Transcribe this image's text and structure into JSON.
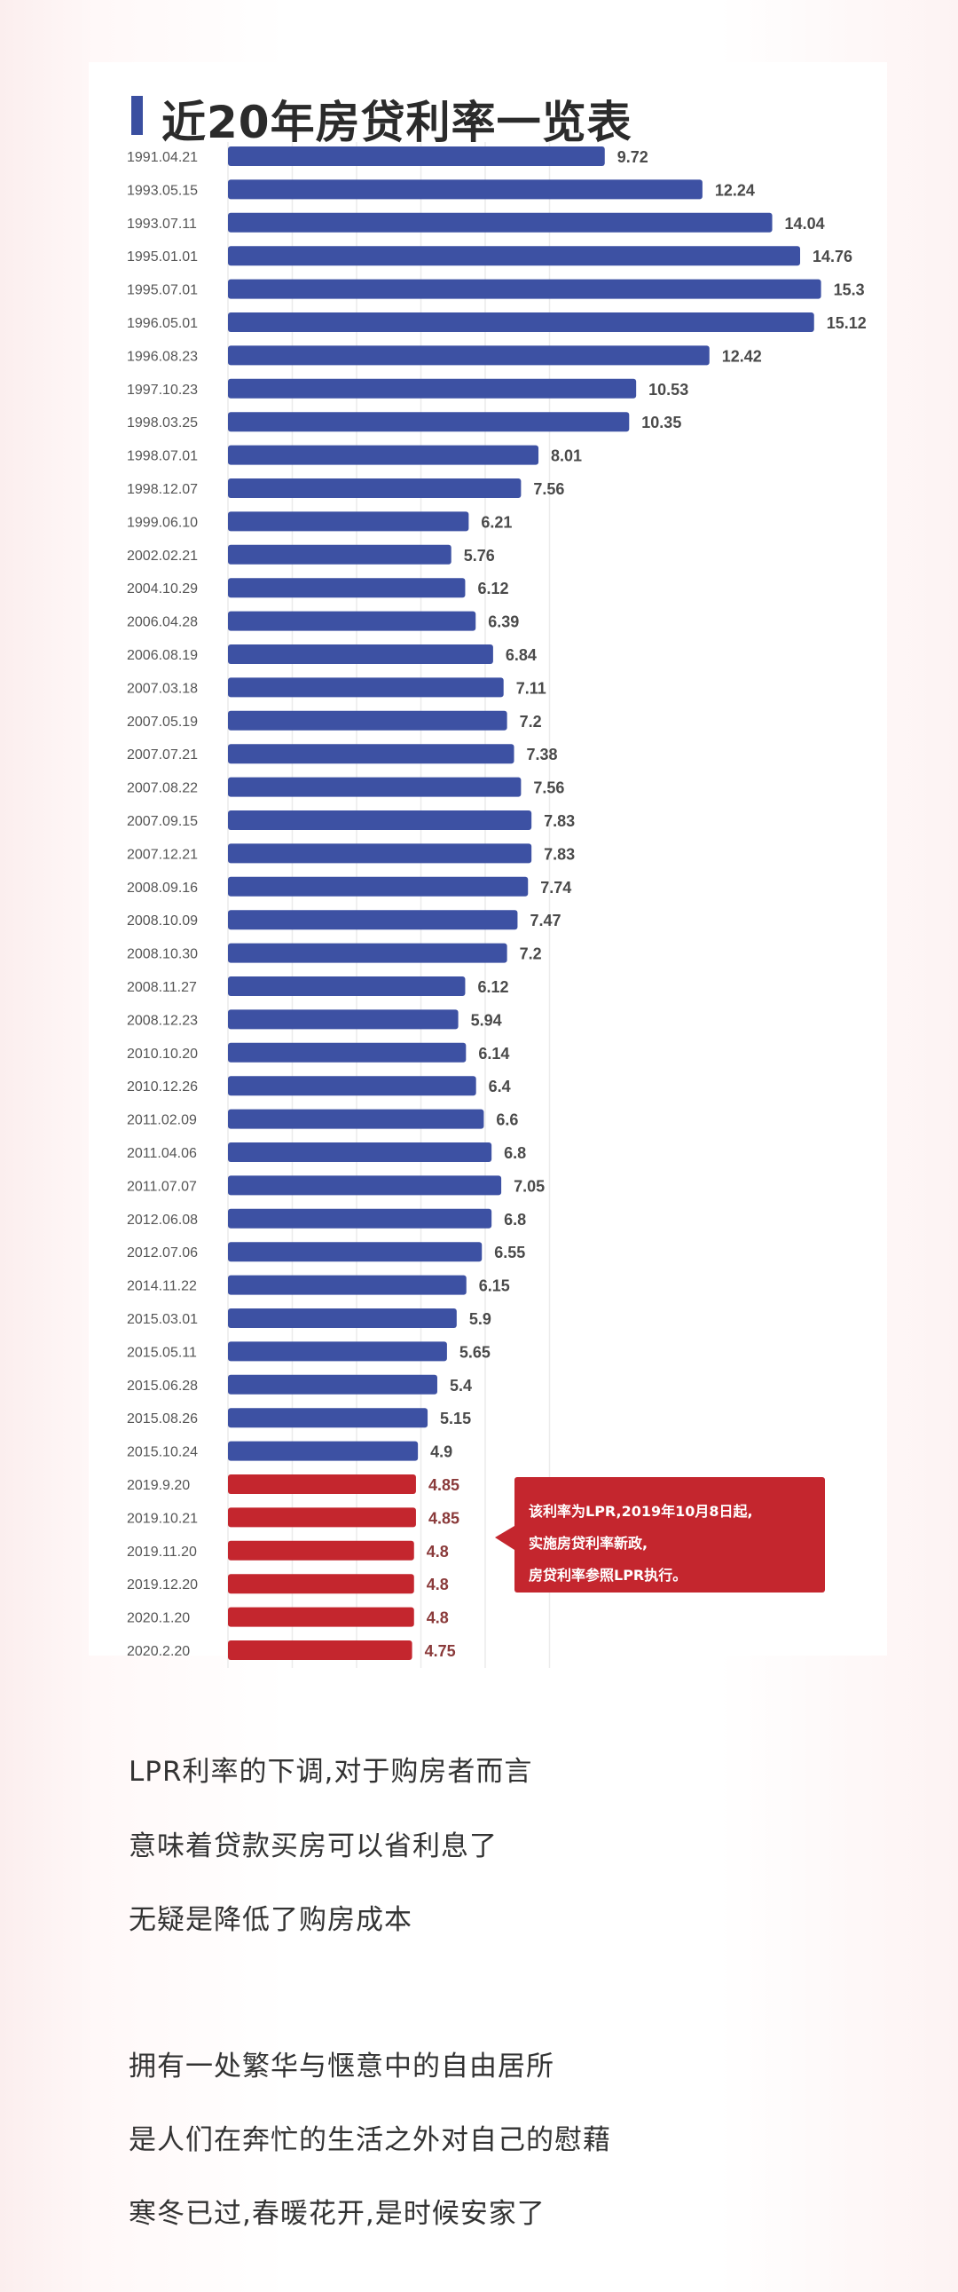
{
  "chart_data": {
    "type": "bar",
    "orientation": "horizontal",
    "title": "近20年房贷利率一览表",
    "categories": [
      "1991.04.21",
      "1993.05.15",
      "1993.07.11",
      "1995.01.01",
      "1995.07.01",
      "1996.05.01",
      "1996.08.23",
      "1997.10.23",
      "1998.03.25",
      "1998.07.01",
      "1998.12.07",
      "1999.06.10",
      "2002.02.21",
      "2004.10.29",
      "2006.04.28",
      "2006.08.19",
      "2007.03.18",
      "2007.05.19",
      "2007.07.21",
      "2007.08.22",
      "2007.09.15",
      "2007.12.21",
      "2008.09.16",
      "2008.10.09",
      "2008.10.30",
      "2008.11.27",
      "2008.12.23",
      "2010.10.20",
      "2010.12.26",
      "2011.02.09",
      "2011.04.06",
      "2011.07.07",
      "2012.06.08",
      "2012.07.06",
      "2014.11.22",
      "2015.03.01",
      "2015.05.11",
      "2015.06.28",
      "2015.08.26",
      "2015.10.24",
      "2019.9.20",
      "2019.10.21",
      "2019.11.20",
      "2019.12.20",
      "2020.1.20",
      "2020.2.20"
    ],
    "values": [
      9.72,
      12.24,
      14.04,
      14.76,
      15.3,
      15.12,
      12.42,
      10.53,
      10.35,
      8.01,
      7.56,
      6.21,
      5.76,
      6.12,
      6.39,
      6.84,
      7.11,
      7.2,
      7.38,
      7.56,
      7.83,
      7.83,
      7.74,
      7.47,
      7.2,
      6.12,
      5.94,
      6.14,
      6.4,
      6.6,
      6.8,
      7.05,
      6.8,
      6.55,
      6.15,
      5.9,
      5.65,
      5.4,
      5.15,
      4.9,
      4.85,
      4.85,
      4.8,
      4.8,
      4.8,
      4.75
    ],
    "data_labels": [
      "9.72",
      "12.24",
      "14.04",
      "14.76",
      "15.3",
      "15.12",
      "12.42",
      "10.53",
      "10.35",
      "8.01",
      "7.56",
      "6.21",
      "5.76",
      "6.12",
      "6.39",
      "6.84",
      "7.11",
      "7.2",
      "7.38",
      "7.56",
      "7.83",
      "7.83",
      "7.74",
      "7.47",
      "7.2",
      "6.12",
      "5.94",
      "6.14",
      "6.4",
      "6.6",
      "6.8",
      "7.05",
      "6.8",
      "6.55",
      "6.15",
      "5.9",
      "5.65",
      "5.4",
      "5.15",
      "4.9",
      "4.85",
      "4.85",
      "4.8",
      "4.8",
      "4.8",
      "4.75"
    ],
    "highlight_from_index": 40,
    "colors": {
      "base": "#3d51a3",
      "lpr": "#c4262e",
      "title_bar": "#3a4fa0"
    },
    "grid": true,
    "annotation": {
      "lines": [
        "该利率为LPR,2019年10月8日起,",
        "实施房贷利率新政,",
        "房贷利率参照LPR执行。"
      ],
      "color": "#c4262e"
    }
  },
  "text_lines": [
    "LPR利率的下调,对于购房者而言",
    "意味着贷款买房可以省利息了",
    "无疑是降低了购房成本",
    "拥有一处繁华与惬意中的自由居所",
    "是人们在奔忙的生活之外对自己的慰藉",
    "寒冬已过,春暖花开,是时候安家了"
  ]
}
